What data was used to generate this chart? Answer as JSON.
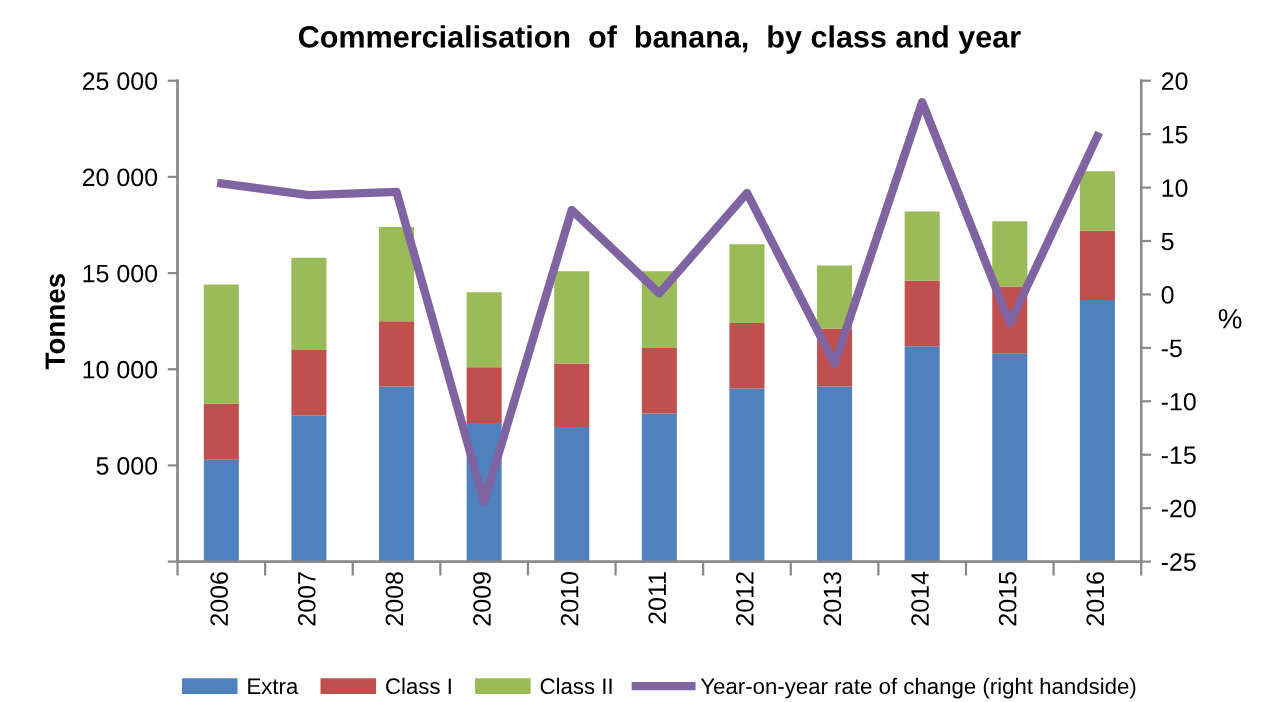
{
  "chart_data": {
    "type": "bar",
    "stacked": true,
    "title": "Commercialisation  of  banana,  by class and year",
    "ylabel": "Tonnes",
    "y2label": "%",
    "categories": [
      "2006",
      "2007",
      "2008",
      "2009",
      "2010",
      "2011",
      "2012",
      "2013",
      "2014",
      "2015",
      "2016"
    ],
    "series": [
      {
        "name": "Extra",
        "color": "#4f81bd",
        "values": [
          5300,
          7600,
          9100,
          7200,
          7000,
          7700,
          9000,
          9100,
          11200,
          10800,
          13600
        ]
      },
      {
        "name": "Class I",
        "color": "#c0504d",
        "values": [
          2900,
          3400,
          3400,
          2900,
          3300,
          3400,
          3400,
          3000,
          3400,
          3500,
          3600
        ]
      },
      {
        "name": "Class II",
        "color": "#9bbb59",
        "values": [
          6200,
          4800,
          4900,
          3900,
          4800,
          4000,
          4100,
          3300,
          3600,
          3400,
          3100
        ]
      },
      {
        "name": "Year-on-year rate of change (right handside)",
        "color": "#8064a2",
        "type": "line",
        "axis": "y2",
        "values": [
          10.4,
          9.3,
          9.6,
          -19.4,
          7.9,
          0.1,
          9.5,
          -6.5,
          18.0,
          -2.7,
          14.8
        ]
      }
    ],
    "ylim": [
      0,
      25000
    ],
    "yticks": [
      {
        "value": 0,
        "label": null
      },
      {
        "value": 5000,
        "label": "5 000"
      },
      {
        "value": 10000,
        "label": "10 000"
      },
      {
        "value": 15000,
        "label": "15 000"
      },
      {
        "value": 20000,
        "label": "20 000"
      },
      {
        "value": 25000,
        "label": "25 000"
      }
    ],
    "y2lim": [
      -25,
      20
    ],
    "y2ticks": [
      -25,
      -20,
      -15,
      -10,
      -5,
      0,
      5,
      10,
      15,
      20
    ],
    "grid": false,
    "legend": "bottom",
    "marker": "none",
    "line_style": "solid"
  }
}
